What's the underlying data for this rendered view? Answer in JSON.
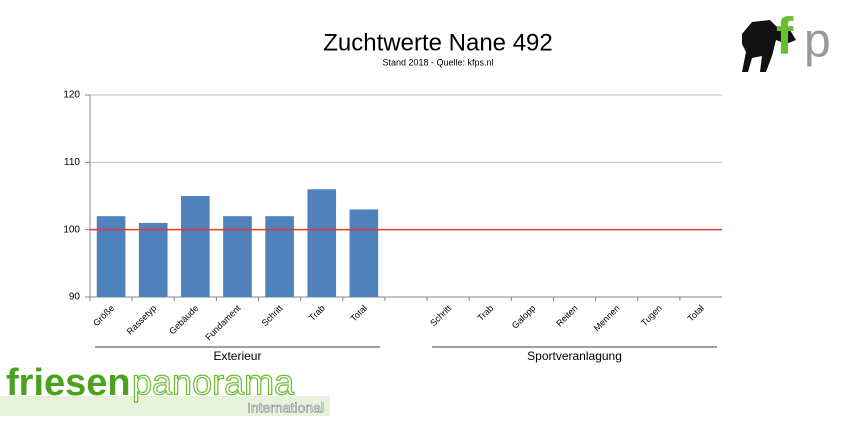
{
  "chart_data": {
    "type": "bar",
    "title": "Zuchtwerte Nane 492",
    "subtitle": "Stand 2018 - Quelle: kfps.nl",
    "categories": [
      "Größe",
      "Rassetyp",
      "Gebäude",
      "Fundament",
      "Schritt",
      "Trab",
      "Total",
      null,
      "Schritt",
      "Trab",
      "Galopp",
      "Reiten",
      "Mennen",
      "Tugen",
      "Total"
    ],
    "values": [
      102,
      101,
      105,
      102,
      102,
      106,
      103,
      null,
      null,
      null,
      null,
      null,
      null,
      null,
      null
    ],
    "color": "#4f81bd",
    "ylim": [
      90,
      120
    ],
    "yticks": [
      90,
      100,
      110,
      120
    ],
    "grid": true,
    "reference_line": {
      "value": 100,
      "color": "#e03a30"
    },
    "groups": [
      {
        "label": "Exterieur",
        "from": 0,
        "to": 6
      },
      {
        "label": "Sportveranlagung",
        "from": 8,
        "to": 14
      }
    ]
  },
  "logo_top": {
    "letter1": "f",
    "letter2": "p"
  },
  "logo_bottom": {
    "part1": "friesen",
    "part2": "panorama",
    "part3": "International"
  }
}
